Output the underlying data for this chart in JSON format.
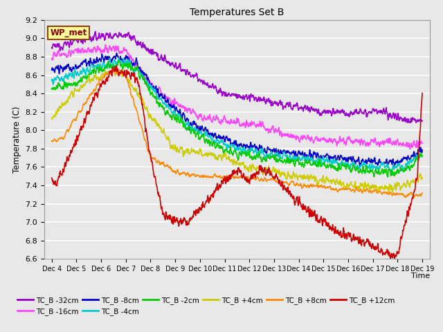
{
  "title": "Temperatures Set B",
  "xlabel": "Time",
  "ylabel": "Temperature (C)",
  "ylim": [
    6.6,
    9.2
  ],
  "background_color": "#e8e8e8",
  "plot_bg_color": "#e8e8e8",
  "grid_color": "#ffffff",
  "annotation_text": "WP_met",
  "x_ticks_labels": [
    "Dec 4",
    "Dec 5",
    "Dec 6",
    "Dec 7",
    "Dec 8",
    "Dec 9",
    "Dec 10",
    "Dec 11",
    "Dec 12",
    "Dec 13",
    "Dec 14",
    "Dec 15",
    "Dec 16",
    "Dec 17",
    "Dec 18",
    "Dec 19"
  ],
  "series": [
    {
      "label": "TC_B -32cm",
      "color": "#9900cc"
    },
    {
      "label": "TC_B -16cm",
      "color": "#ff44ff"
    },
    {
      "label": "TC_B -8cm",
      "color": "#0000cc"
    },
    {
      "label": "TC_B -4cm",
      "color": "#00cccc"
    },
    {
      "label": "TC_B -2cm",
      "color": "#00cc00"
    },
    {
      "label": "TC_B +4cm",
      "color": "#cccc00"
    },
    {
      "label": "TC_B +8cm",
      "color": "#ff8800"
    },
    {
      "label": "TC_B +12cm",
      "color": "#cc0000"
    }
  ]
}
